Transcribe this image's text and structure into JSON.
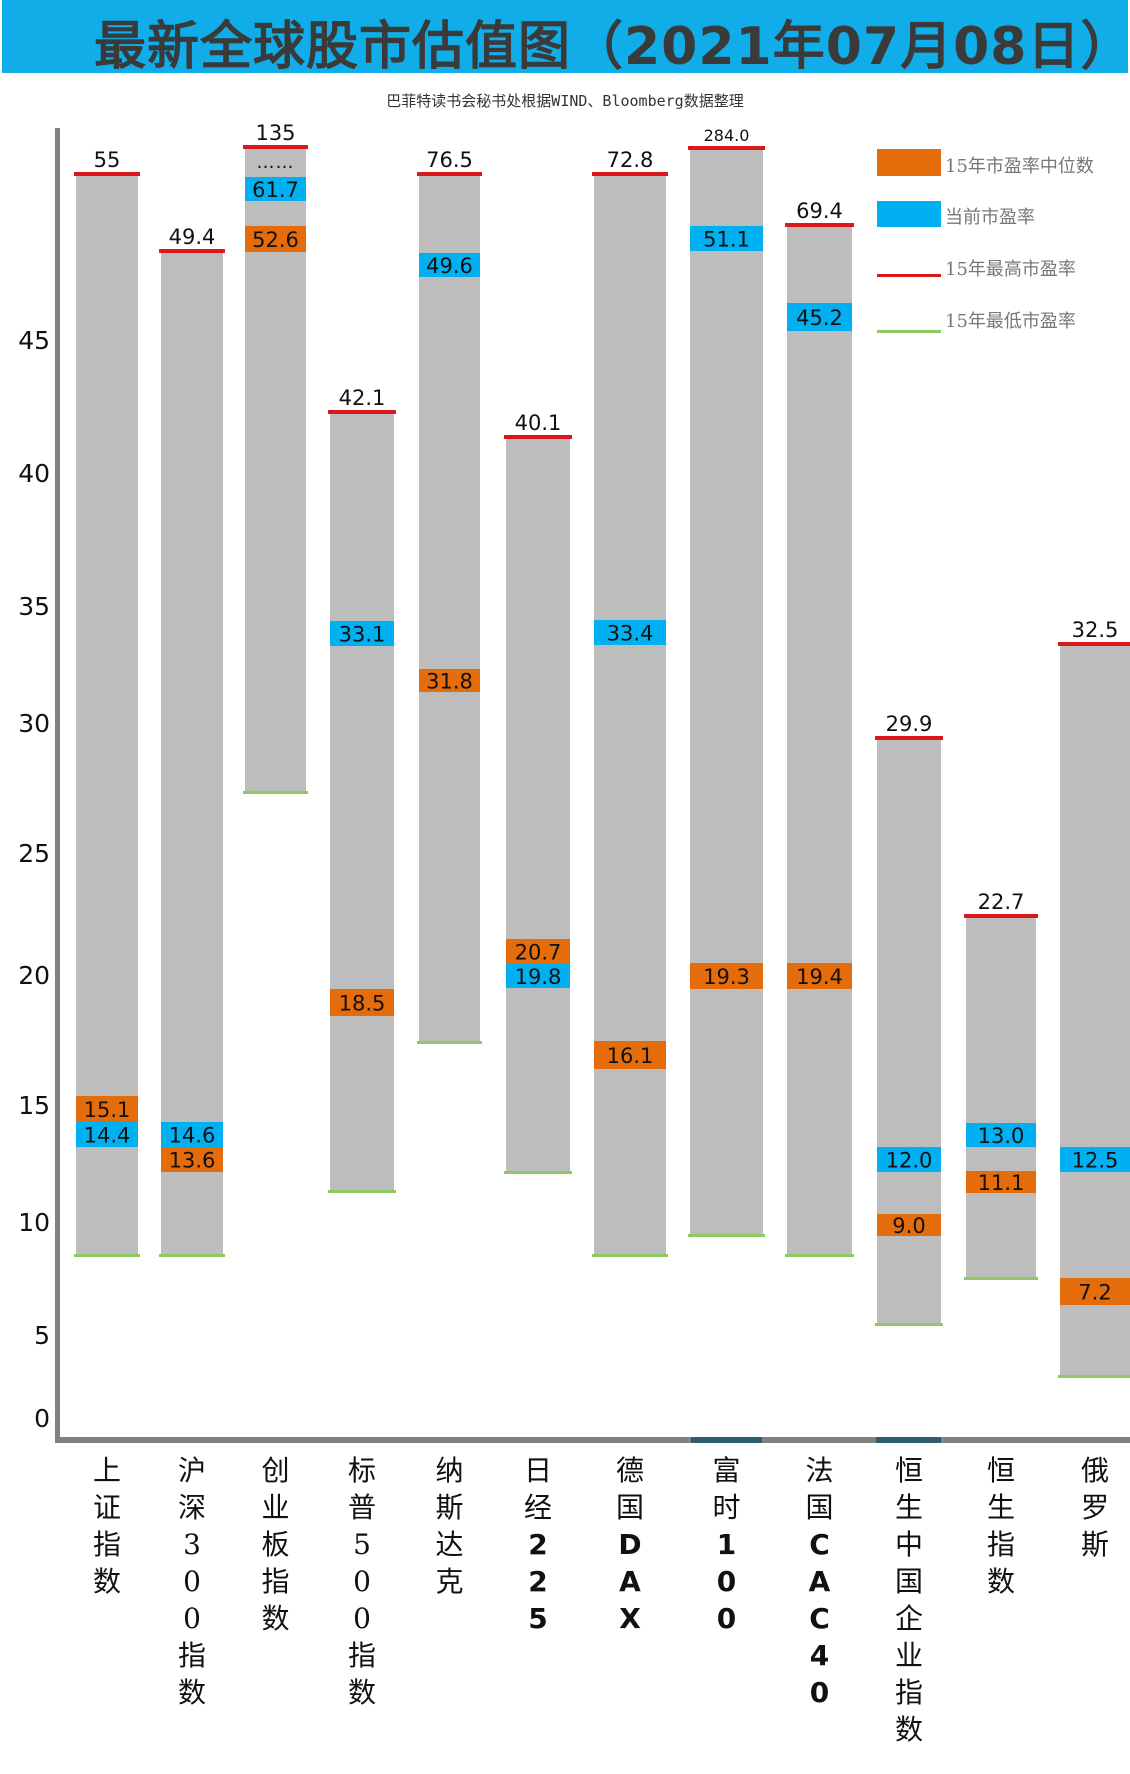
{
  "title": "最新全球股市估值图（2021年07月08日）",
  "subtitle": "巴菲特读书会秘书处根据WIND、Bloomberg数据整理",
  "colors": {
    "banner": "#10ADE8",
    "bar": "#BDBDBD",
    "median": "#E46C0A",
    "current": "#00B0F0",
    "max_line": "#D7191C",
    "min_line": "#8DC965",
    "axis": "#808080"
  },
  "chart_data": {
    "type": "bar",
    "title": "最新全球股市估值图（2021年07月08日）",
    "subtitle": "巴菲特读书会秘书处根据WIND、Bloomberg数据整理",
    "xlabel": "",
    "ylabel": "",
    "yticks": [
      "0",
      "5",
      "10",
      "15",
      "20",
      "25",
      "30",
      "35",
      "40",
      "45"
    ],
    "grid": false,
    "legend_position": "top-right",
    "legend": [
      {
        "label": "15年市盈率中位数",
        "kind": "box",
        "color": "#E46C0A"
      },
      {
        "label": "当前市盈率",
        "kind": "box",
        "color": "#00B0F0"
      },
      {
        "label": "15年最高市盈率",
        "kind": "line",
        "color": "#D7191C"
      },
      {
        "label": "15年最低市盈率",
        "kind": "line",
        "color": "#8DC965"
      }
    ],
    "categories": [
      {
        "name": "上证指数",
        "chars": [
          "上",
          "证",
          "指",
          "数"
        ],
        "bold": []
      },
      {
        "name": "沪深300指数",
        "chars": [
          "沪",
          "深",
          "3",
          "0",
          "0",
          "指",
          "数"
        ],
        "bold": []
      },
      {
        "name": "创业板指数",
        "chars": [
          "创",
          "业",
          "板",
          "指",
          "数"
        ],
        "bold": []
      },
      {
        "name": "标普500指数",
        "chars": [
          "标",
          "普",
          "5",
          "0",
          "0",
          "指",
          "数"
        ],
        "bold": []
      },
      {
        "name": "纳斯达克",
        "chars": [
          "纳",
          "斯",
          "达",
          "克"
        ],
        "bold": []
      },
      {
        "name": "日经225",
        "chars": [
          "日",
          "经",
          "2",
          "2",
          "5"
        ],
        "bold": [
          2,
          3,
          4
        ]
      },
      {
        "name": "德国DAX",
        "chars": [
          "德",
          "国",
          "D",
          "A",
          "X"
        ],
        "bold": [
          2,
          3,
          4
        ]
      },
      {
        "name": "富时100",
        "chars": [
          "富",
          "时",
          "1",
          "0",
          "0"
        ],
        "bold": [
          2,
          3,
          4
        ]
      },
      {
        "name": "法国CAC40",
        "chars": [
          "法",
          "国",
          "C",
          "A",
          "C",
          "4",
          "0"
        ],
        "bold": [
          2,
          3,
          4,
          5,
          6
        ]
      },
      {
        "name": "恒生中国企业指数",
        "chars": [
          "恒",
          "生",
          "中",
          "国",
          "企",
          "业",
          "指",
          "数"
        ],
        "bold": []
      },
      {
        "name": "恒生指数",
        "chars": [
          "恒",
          "生",
          "指",
          "数"
        ],
        "bold": []
      },
      {
        "name": "俄罗斯",
        "chars": [
          "俄",
          "罗",
          "斯"
        ],
        "bold": []
      }
    ],
    "series": [
      {
        "name": "15年最高市盈率",
        "labels": [
          "55",
          "49.4",
          "135",
          "42.1",
          "76.5",
          "40.1",
          "72.8",
          "284.0",
          "69.4",
          "29.9",
          "22.7",
          "32.5"
        ],
        "values": [
          55,
          49.4,
          135,
          42.1,
          76.5,
          40.1,
          72.8,
          284.0,
          69.4,
          29.9,
          22.7,
          32.5
        ]
      },
      {
        "name": "当前市盈率",
        "labels": [
          "14.4",
          "14.6",
          "61.7",
          "33.1",
          "49.6",
          "19.8",
          "33.4",
          "51.1",
          "45.2",
          "12.0",
          "13.0",
          "12.5"
        ],
        "values": [
          14.4,
          14.6,
          61.7,
          33.1,
          49.6,
          19.8,
          33.4,
          51.1,
          45.2,
          12.0,
          13.0,
          12.5
        ]
      },
      {
        "name": "15年市盈率中位数",
        "labels": [
          "15.1",
          "13.6",
          "52.6",
          "18.5",
          "31.8",
          "20.7",
          "16.1",
          "19.3",
          "19.4",
          "9.0",
          "11.1",
          "7.2"
        ],
        "values": [
          15.1,
          13.6,
          52.6,
          18.5,
          31.8,
          20.7,
          16.1,
          19.3,
          19.4,
          9.0,
          11.1,
          7.2
        ]
      }
    ],
    "annotations": [
      "创业板指数 bar truncated (……)"
    ]
  }
}
